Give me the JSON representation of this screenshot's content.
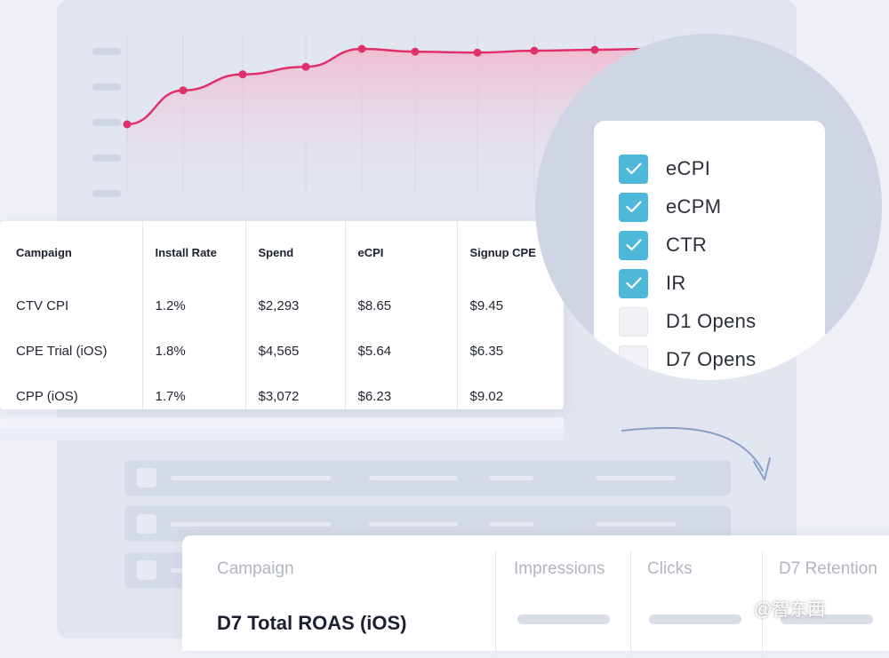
{
  "chart_data": {
    "type": "line",
    "x": [
      1,
      2,
      3,
      4,
      5,
      6,
      7,
      8,
      9,
      10
    ],
    "values": [
      20,
      56,
      73,
      81,
      100,
      97,
      96,
      98,
      99,
      100
    ],
    "color": "#e0306b"
  },
  "table": {
    "headers": [
      "Campaign",
      "Install Rate",
      "Spend",
      "eCPI",
      "Signup CPE"
    ],
    "rows": [
      [
        "CTV CPI",
        "1.2%",
        "$2,293",
        "$8.65",
        "$9.45"
      ],
      [
        "CPE Trial (iOS)",
        "1.8%",
        "$4,565",
        "$5.64",
        "$6.35"
      ],
      [
        "CPP (iOS)",
        "1.7%",
        "$3,072",
        "$6.23",
        "$9.02"
      ]
    ]
  },
  "metric_picker": {
    "options": [
      {
        "label": "eCPI",
        "checked": true
      },
      {
        "label": "eCPM",
        "checked": true
      },
      {
        "label": "CTR",
        "checked": true
      },
      {
        "label": "IR",
        "checked": true
      },
      {
        "label": "D1 Opens",
        "checked": false
      },
      {
        "label": "D7 Opens",
        "checked": false
      }
    ],
    "accent": "#4db8d9"
  },
  "bottom_table": {
    "headers": [
      "Campaign",
      "Impressions",
      "Clicks",
      "D7 Retention"
    ],
    "row_label": "D7 Total ROAS (iOS)"
  },
  "watermark": "@智东西"
}
